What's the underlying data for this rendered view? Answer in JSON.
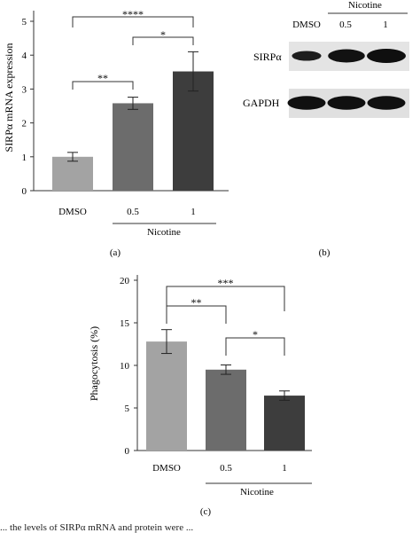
{
  "chart_data": [
    {
      "id": "a",
      "type": "bar",
      "panel_label": "(a)",
      "ylabel": "SIRPα mRNA expression",
      "ylim": [
        0,
        5
      ],
      "yticks": [
        "0",
        "1",
        "2",
        "3",
        "4",
        "5"
      ],
      "categories": [
        "DMSO",
        "0.5",
        "1"
      ],
      "group_label": "Nicotine",
      "values": [
        1.0,
        2.58,
        3.52
      ],
      "errors": [
        0.13,
        0.18,
        0.58
      ],
      "colors": [
        "#a3a3a3",
        "#6c6c6c",
        "#3d3d3d"
      ],
      "significance": [
        {
          "from": 0,
          "to": 2,
          "label": "****"
        },
        {
          "from": 1,
          "to": 2,
          "label": "*"
        },
        {
          "from": 0,
          "to": 1,
          "label": "**"
        }
      ]
    },
    {
      "id": "c",
      "type": "bar",
      "panel_label": "(c)",
      "ylabel": "Phagocytosis (%)",
      "ylim": [
        0,
        20
      ],
      "yticks": [
        "0",
        "5",
        "10",
        "15",
        "20"
      ],
      "categories": [
        "DMSO",
        "0.5",
        "1"
      ],
      "group_label": "Nicotine",
      "values": [
        12.8,
        9.5,
        6.45
      ],
      "errors": [
        1.4,
        0.55,
        0.55
      ],
      "colors": [
        "#a3a3a3",
        "#6c6c6c",
        "#3d3d3d"
      ],
      "significance": [
        {
          "from": 0,
          "to": 2,
          "label": "***"
        },
        {
          "from": 0,
          "to": 1,
          "label": "**"
        },
        {
          "from": 1,
          "to": 2,
          "label": "*"
        }
      ]
    }
  ],
  "blot": {
    "panel_label": "(b)",
    "header": "Nicotine",
    "lanes": [
      "DMSO",
      "0.5",
      "1"
    ],
    "rows": [
      {
        "label": "SIRPα",
        "intensity": [
          0.45,
          0.88,
          1.0
        ]
      },
      {
        "label": "GAPDH",
        "intensity": [
          0.95,
          0.95,
          0.95
        ]
      }
    ]
  },
  "caption_fragment": "... the levels of SIRPα mRNA and protein were ..."
}
